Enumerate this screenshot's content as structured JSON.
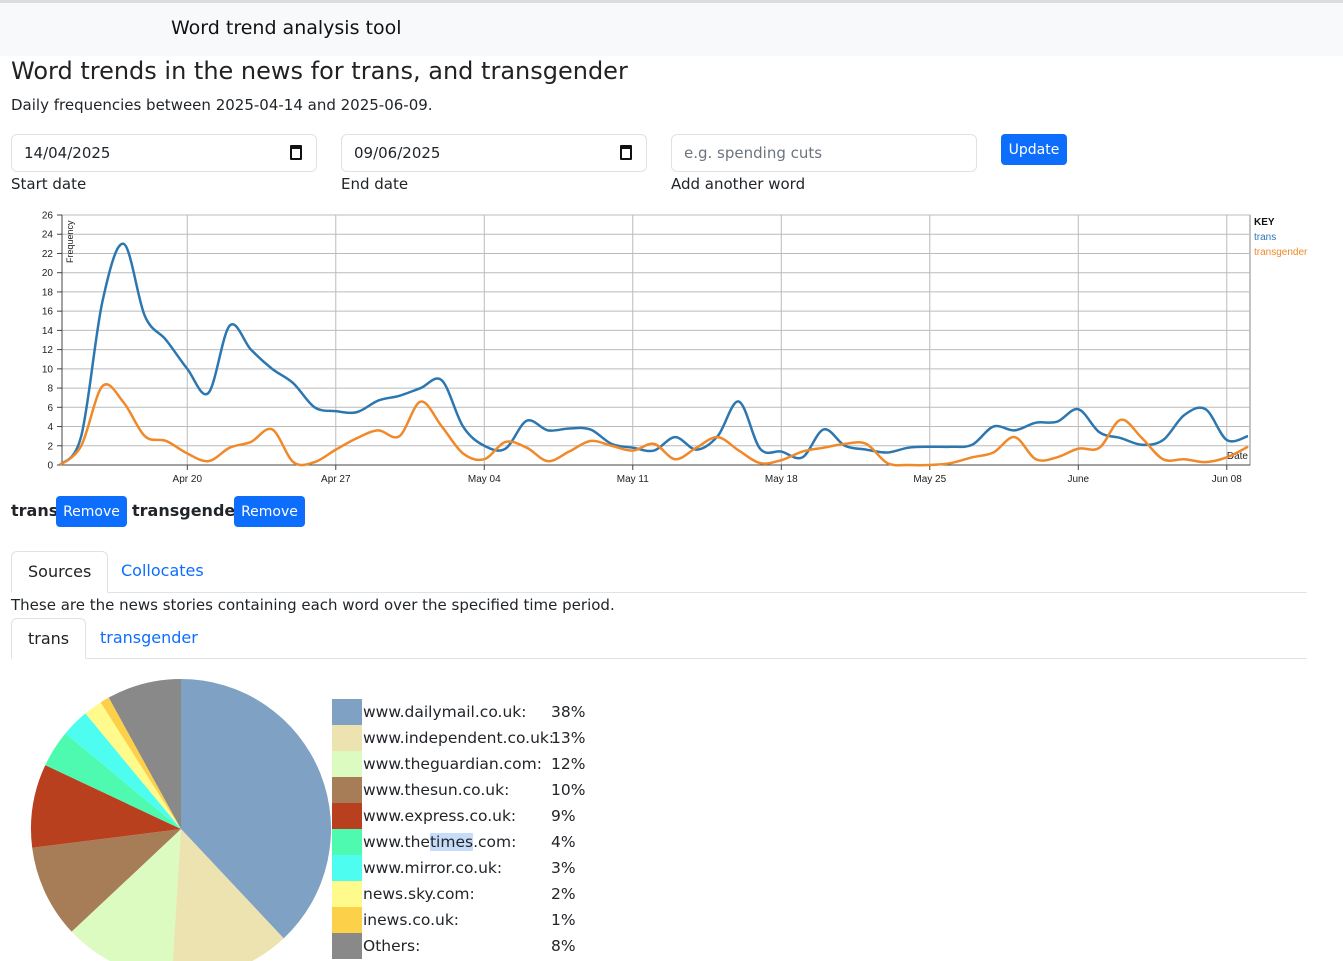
{
  "nav": {
    "brand": "Word trend analysis tool"
  },
  "page": {
    "title": "Word trends in the news for trans, and transgender",
    "subtitle": "Daily frequencies between 2025-04-14 and 2025-06-09."
  },
  "form": {
    "start_value": "14/04/2025",
    "start_label": "Start date",
    "end_value": "09/06/2025",
    "end_label": "End date",
    "word_placeholder": "e.g. spending cuts",
    "word_label": "Add another word",
    "update": "Update"
  },
  "words": [
    {
      "word": "trans",
      "remove": "Remove"
    },
    {
      "word": "transgender",
      "remove": "Remove"
    }
  ],
  "tabs": {
    "main": [
      "Sources",
      "Collocates"
    ],
    "description": "These are the news stories containing each word over the specified time period.",
    "words": [
      "trans",
      "transgender"
    ]
  },
  "chart_data": [
    {
      "type": "line",
      "ylabel": "Frequency",
      "xlabel": "Date",
      "legend_title": "KEY",
      "legend_position": "right",
      "ylim": [
        0,
        26
      ],
      "yticks": [
        0,
        2,
        4,
        6,
        8,
        10,
        12,
        14,
        16,
        18,
        20,
        22,
        24,
        26
      ],
      "x_start": "2025-04-14",
      "x_end": "2025-06-09",
      "xticks": [
        {
          "label": "Apr 20",
          "day": 6
        },
        {
          "label": "Apr 27",
          "day": 13
        },
        {
          "label": "May 04",
          "day": 20
        },
        {
          "label": "May 11",
          "day": 27
        },
        {
          "label": "May 18",
          "day": 34
        },
        {
          "label": "May 25",
          "day": 41
        },
        {
          "label": "June",
          "day": 48
        },
        {
          "label": "Jun 08",
          "day": 55
        }
      ],
      "series": [
        {
          "name": "trans",
          "color": "#2c77b0",
          "values": [
            0,
            3,
            17,
            23,
            15.5,
            13,
            10,
            7.5,
            14.5,
            12,
            10,
            8.5,
            6,
            5.6,
            5.5,
            6.7,
            7.2,
            8,
            8.8,
            4,
            2,
            1.7,
            4.6,
            3.6,
            3.8,
            3.7,
            2.2,
            1.8,
            1.5,
            2.9,
            1.6,
            3,
            6.6,
            1.7,
            1.4,
            0.8,
            3.7,
            2,
            1.6,
            1.3,
            1.8,
            1.9,
            1.9,
            2.1,
            4,
            3.6,
            4.4,
            4.5,
            5.8,
            3.4,
            2.8,
            2.1,
            2.6,
            5.2,
            5.8,
            2.6,
            3
          ]
        },
        {
          "name": "transgender",
          "color": "#f0892a",
          "values": [
            0,
            2,
            8.2,
            6.5,
            3,
            2.5,
            1.2,
            0.4,
            1.8,
            2.4,
            3.7,
            0.3,
            0.3,
            1.6,
            2.8,
            3.6,
            3,
            6.6,
            4,
            1.2,
            0.6,
            2.4,
            1.8,
            0.4,
            1.4,
            2.5,
            2,
            1.5,
            2.2,
            0.6,
            1.8,
            2.9,
            1.5,
            0.2,
            0.5,
            1.4,
            1.8,
            2.2,
            2.2,
            0.2,
            0,
            0,
            0.2,
            0.8,
            1.3,
            2.9,
            0.6,
            0.8,
            1.7,
            1.8,
            4.7,
            2.8,
            0.6,
            0.6,
            0.3,
            0.8,
            1.9
          ]
        }
      ]
    },
    {
      "type": "pie",
      "slices": [
        {
          "label": "www.dailymail.co.uk:",
          "pct": "38%",
          "value": 38,
          "color": "#7fa1c3"
        },
        {
          "label": "www.independent.co.uk:",
          "pct": "13%",
          "value": 13,
          "color": "#ede3b0"
        },
        {
          "label": "www.theguardian.com:",
          "pct": "12%",
          "value": 12,
          "color": "#dbfbc0"
        },
        {
          "label": "www.thesun.co.uk:",
          "pct": "10%",
          "value": 10,
          "color": "#a67d57"
        },
        {
          "label": "www.express.co.uk:",
          "pct": "9%",
          "value": 9,
          "color": "#b9401e"
        },
        {
          "label": "www.thetimes.com:",
          "pct": "4%",
          "value": 4,
          "color": "#4efab0"
        },
        {
          "label": "www.mirror.co.uk:",
          "pct": "3%",
          "value": 3,
          "color": "#4dfdef"
        },
        {
          "label": "news.sky.com:",
          "pct": "2%",
          "value": 2,
          "color": "#fefb8c"
        },
        {
          "label": "inews.co.uk:",
          "pct": "1%",
          "value": 1,
          "color": "#fdd04a"
        },
        {
          "label": "Others:",
          "pct": "8%",
          "value": 8,
          "color": "#898989"
        }
      ]
    }
  ]
}
